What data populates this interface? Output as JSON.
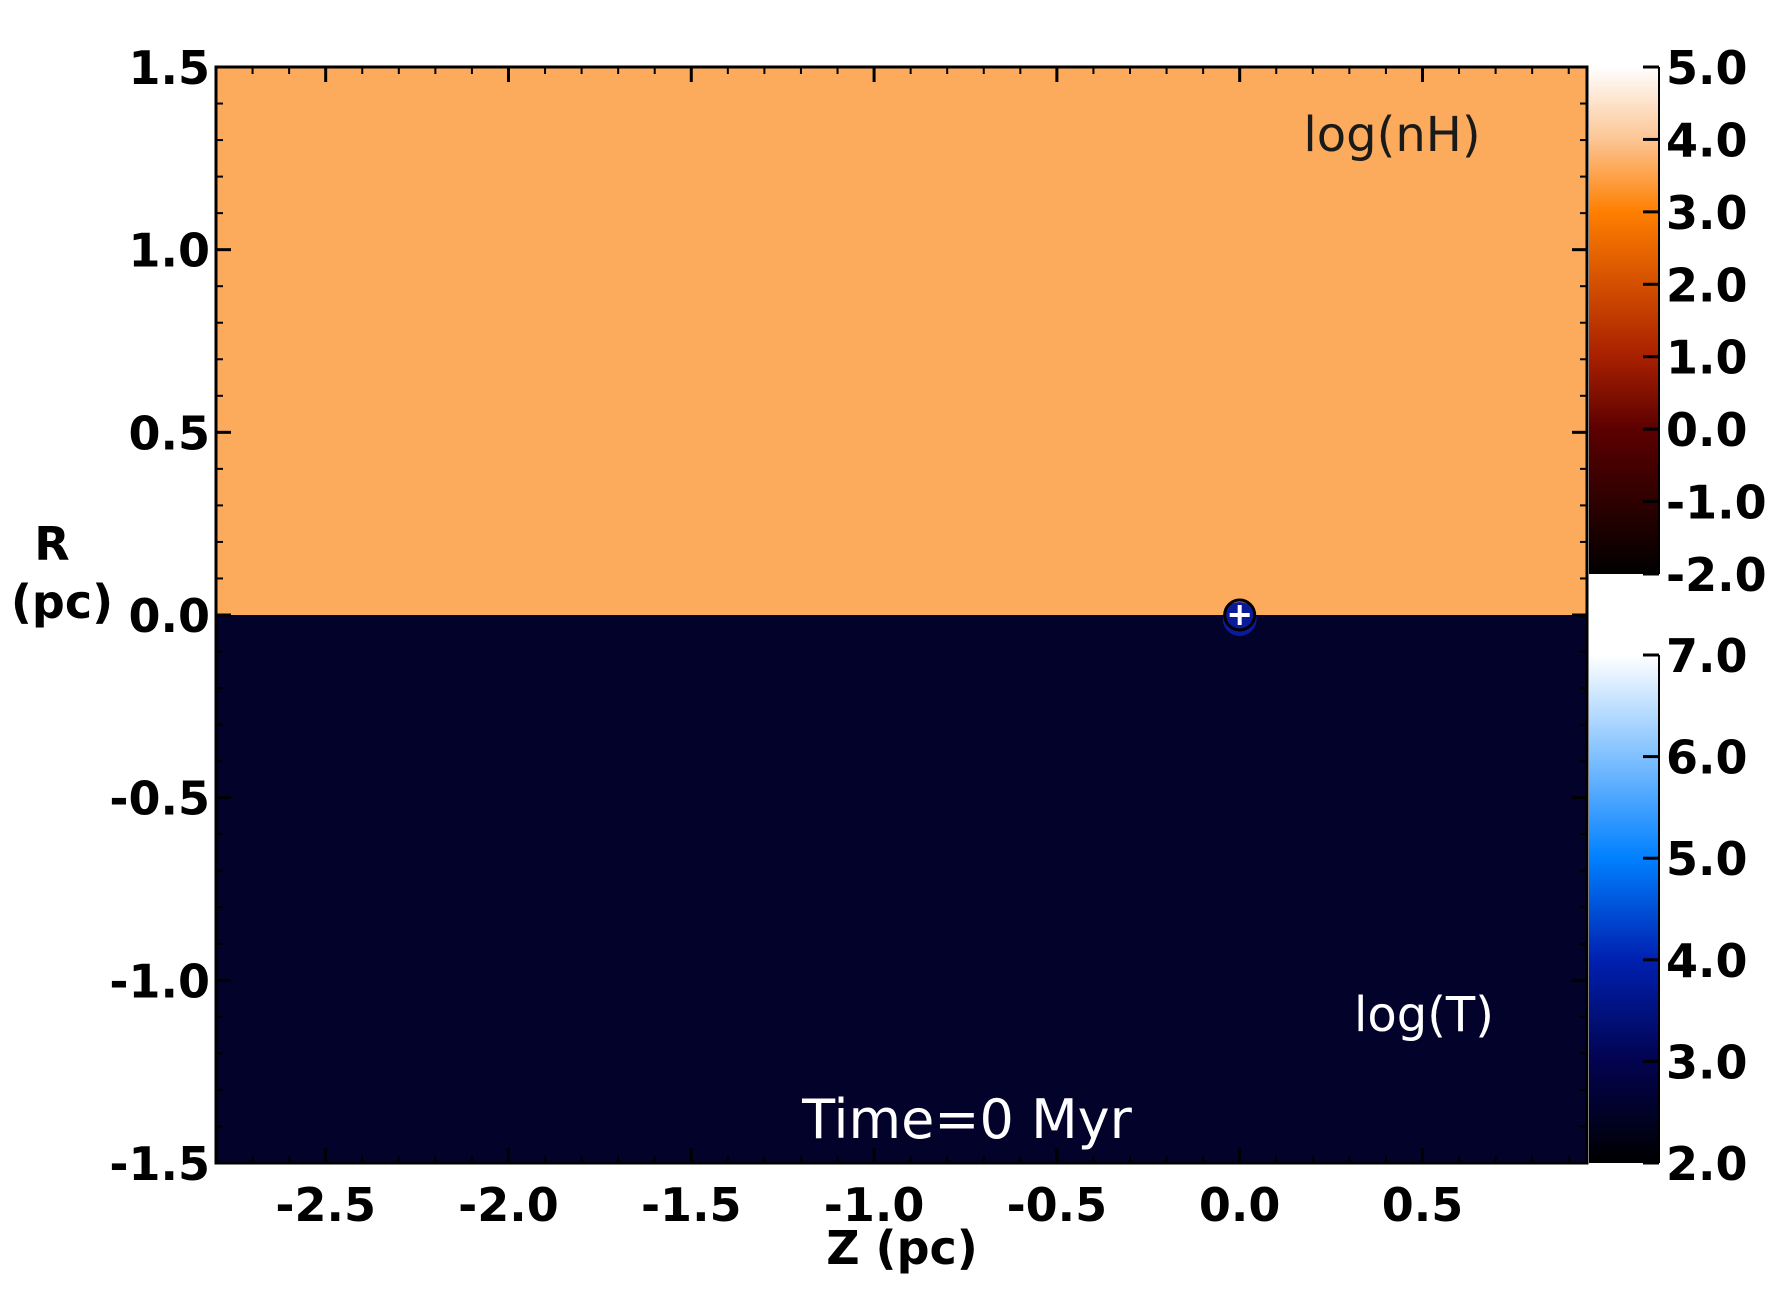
{
  "chart_data": {
    "type": "heatmap",
    "xlabel": "Z (pc)",
    "ylabel_line1": "R",
    "ylabel_line2": "(pc)",
    "xlim": [
      -2.8,
      0.95
    ],
    "ylim": [
      -1.5,
      1.5
    ],
    "x_ticks": [
      -2.5,
      -2.0,
      -1.5,
      -1.0,
      -0.5,
      0.0,
      0.5
    ],
    "x_tick_labels": [
      "-2.5",
      "-2.0",
      "-1.5",
      "-1.0",
      "-0.5",
      "0.0",
      "0.5"
    ],
    "y_ticks": [
      1.5,
      1.0,
      0.5,
      0.0,
      -0.5,
      -1.0,
      -1.5
    ],
    "y_tick_labels": [
      "1.5",
      "1.0",
      "0.5",
      "0.0",
      "-0.5",
      "-1.0",
      "-1.5"
    ],
    "upper_panel": {
      "label": "log(nH)",
      "y_range": [
        0.0,
        1.5
      ],
      "uniform_value": 3.4,
      "fill_color": "#fcab5c",
      "label_color": "#1a1a1a"
    },
    "lower_panel": {
      "label": "log(T)",
      "y_range": [
        -1.5,
        0.0
      ],
      "uniform_value": 2.5,
      "fill_color": "#03022a",
      "label_color": "#ffffff"
    },
    "source_marker": {
      "x": 0.0,
      "y": 0.0,
      "symbol": "⊕"
    },
    "time_label": "Time=0 Myr",
    "colorbar_nH": {
      "range": [
        -2.0,
        5.0
      ],
      "tick_values": [
        5.0,
        4.0,
        3.0,
        2.0,
        1.0,
        0.0,
        -1.0,
        -2.0
      ],
      "tick_labels": [
        "5.0",
        "4.0",
        "3.0",
        "2.0",
        "1.0",
        "0.0",
        "-1.0",
        "-2.0"
      ],
      "stops": [
        {
          "value": -2.0,
          "color": "#000000"
        },
        {
          "value": 0.0,
          "color": "#5c0000"
        },
        {
          "value": 1.0,
          "color": "#a82000"
        },
        {
          "value": 3.0,
          "color": "#ff7f00"
        },
        {
          "value": 4.0,
          "color": "#fcc594"
        },
        {
          "value": 5.0,
          "color": "#ffffff"
        }
      ]
    },
    "colorbar_T": {
      "range": [
        2.0,
        7.0
      ],
      "tick_values": [
        7.0,
        6.0,
        5.0,
        4.0,
        3.0,
        2.0
      ],
      "tick_labels": [
        "7.0",
        "6.0",
        "5.0",
        "4.0",
        "3.0",
        "2.0"
      ],
      "stops": [
        {
          "value": 2.0,
          "color": "#000000"
        },
        {
          "value": 3.0,
          "color": "#02034f"
        },
        {
          "value": 4.0,
          "color": "#0020b0"
        },
        {
          "value": 5.0,
          "color": "#0080ff"
        },
        {
          "value": 6.0,
          "color": "#80c0ff"
        },
        {
          "value": 7.0,
          "color": "#ffffff"
        }
      ]
    }
  }
}
